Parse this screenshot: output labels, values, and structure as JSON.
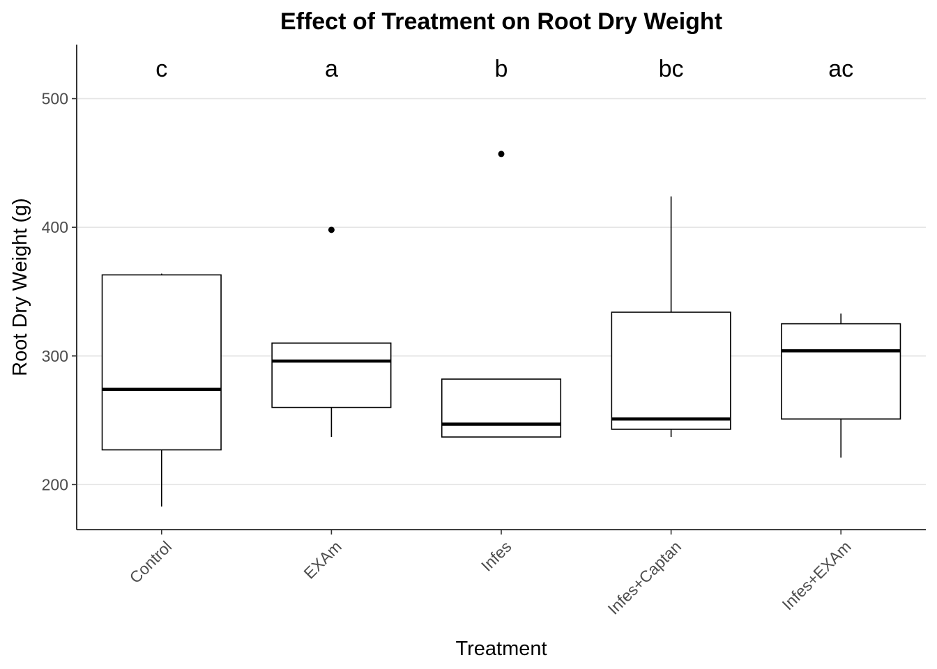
{
  "chart_data": {
    "type": "boxplot",
    "title": "Effect of Treatment on Root Dry Weight",
    "xlabel": "Treatment",
    "ylabel": "Root Dry Weight (g)",
    "ylim": [
      165,
      542
    ],
    "yticks": [
      200,
      300,
      400,
      500
    ],
    "grid": "horizontal major",
    "legend": "none",
    "categories": [
      "Control",
      "EXAm",
      "Infes",
      "Infes+Captan",
      "Infes+EXAm"
    ],
    "boxes": [
      {
        "category": "Control",
        "whisker_low": 183,
        "q1": 227,
        "median": 274,
        "q3": 363,
        "whisker_high": 364,
        "outliers": [],
        "letter": "c"
      },
      {
        "category": "EXAm",
        "whisker_low": 237,
        "q1": 260,
        "median": 296,
        "q3": 310,
        "whisker_high": 310,
        "outliers": [
          398
        ],
        "letter": "a"
      },
      {
        "category": "Infes",
        "whisker_low": 237,
        "q1": 237,
        "median": 247,
        "q3": 282,
        "whisker_high": 282,
        "outliers": [
          457
        ],
        "letter": "b"
      },
      {
        "category": "Infes+Captan",
        "whisker_low": 237,
        "q1": 243,
        "median": 251,
        "q3": 334,
        "whisker_high": 424,
        "outliers": [],
        "letter": "bc"
      },
      {
        "category": "Infes+EXAm",
        "whisker_low": 221,
        "q1": 251,
        "median": 304,
        "q3": 325,
        "whisker_high": 333,
        "outliers": [],
        "letter": "ac"
      }
    ],
    "colors": {
      "box_fill": "#ffffff",
      "box_stroke": "#000000",
      "grid": "#e5e5e5",
      "tick_text": "#4d4d4d"
    }
  }
}
